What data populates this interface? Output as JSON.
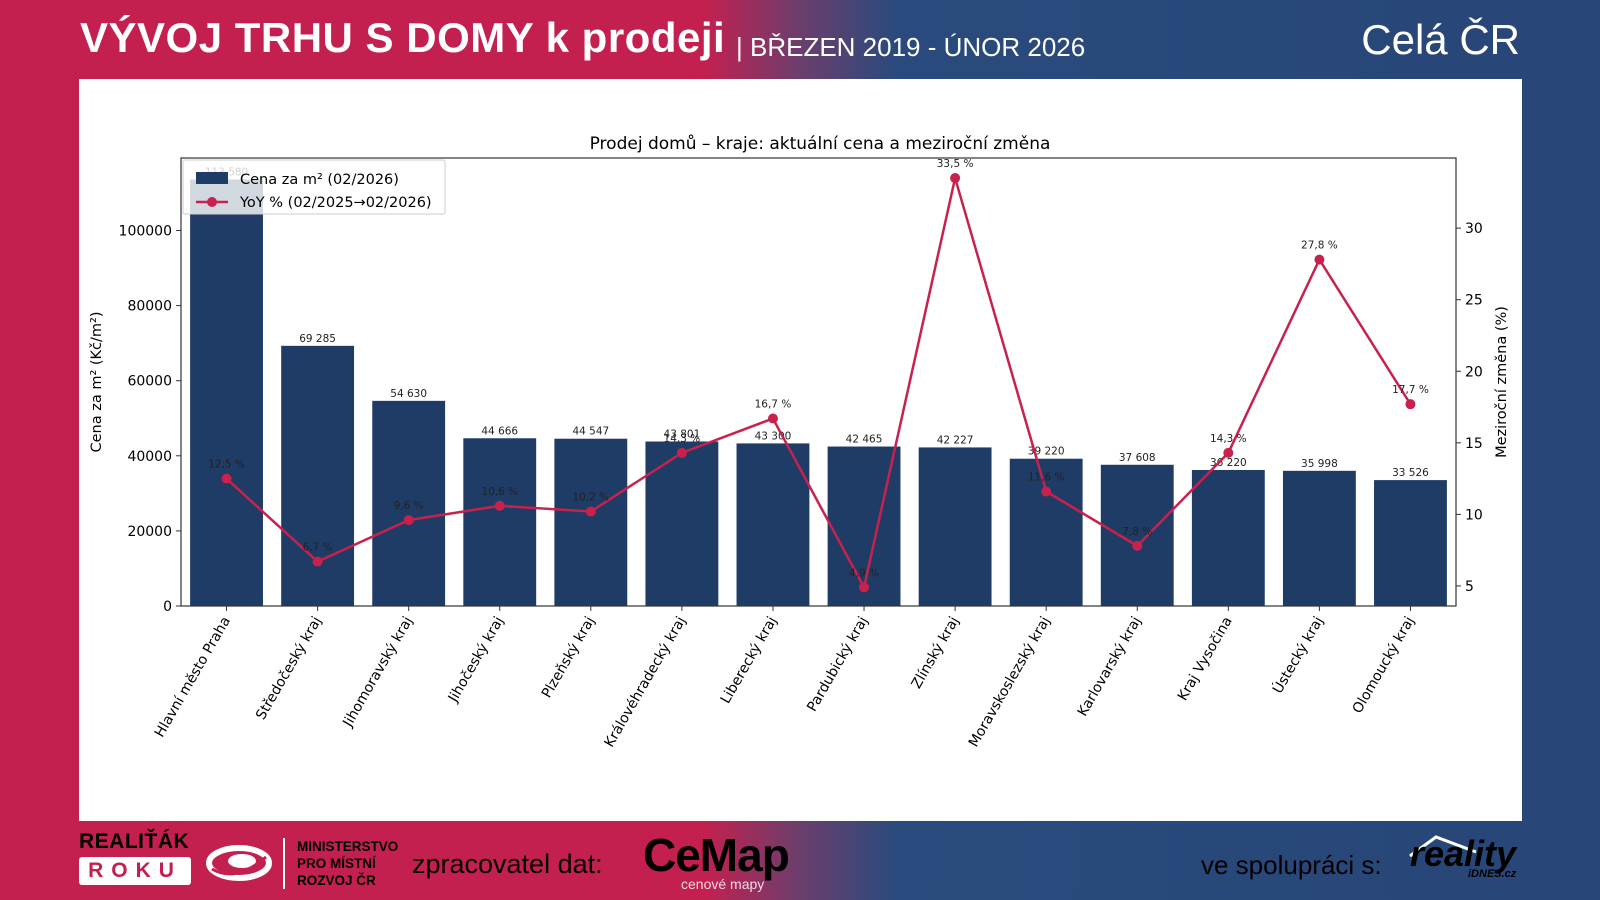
{
  "header": {
    "title": "VÝVOJ TRHU S DOMY k prodeji",
    "period": "| BŘEZEN 2019 - ÚNOR 2026",
    "region": "Celá ČR"
  },
  "footer": {
    "award_line1": "REALIŤÁK",
    "award_line2": "ROKU",
    "ministry_line1": "MINISTERSTVO",
    "ministry_line2": "PRO MÍSTNÍ",
    "ministry_line3": "ROZVOJ ČR",
    "processor_label": "zpracovatel dat:",
    "processor_name": "CeMap",
    "processor_sub": "cenové mapy",
    "partner_label": "ve spolupráci s:",
    "partner_name": "reality",
    "partner_sub": "iDNES.cz"
  },
  "colors": {
    "bar": "#1f3c66",
    "line": "#c8214d",
    "brand_red": "#c4204f",
    "brand_blue": "#284677"
  },
  "chart_data": {
    "type": "bar",
    "title": "Prodej domů – kraje: aktuální cena a meziroční změna",
    "xlabel": "",
    "ylabel": "Cena za m² (Kč/m²)",
    "y2label": "Meziroční změna (%)",
    "ylim": [
      0,
      119300
    ],
    "y2lim": [
      3.6,
      34.9
    ],
    "yticks": [
      0,
      20000,
      40000,
      60000,
      80000,
      100000
    ],
    "y2ticks": [
      5,
      10,
      15,
      20,
      25,
      30
    ],
    "grid": false,
    "legend_position": "top-left",
    "categories": [
      "Hlavní město Praha",
      "Středočeský kraj",
      "Jihomoravský kraj",
      "Jihočeský kraj",
      "Plzeňský kraj",
      "Královéhradecký kraj",
      "Liberecký kraj",
      "Pardubický kraj",
      "Zlínský kraj",
      "Moravskoslezský kraj",
      "Karlovarský kraj",
      "Kraj Vysočina",
      "Ústecký kraj",
      "Olomoucký kraj"
    ],
    "series": [
      {
        "name": "Cena za m² (02/2026)",
        "type": "bar",
        "axis": "left",
        "values": [
          113580,
          69285,
          54630,
          44666,
          44547,
          43801,
          43300,
          42465,
          42227,
          39220,
          37608,
          36220,
          35998,
          33526
        ],
        "labels": [
          "113 580",
          "69 285",
          "54 630",
          "44 666",
          "44 547",
          "43 801",
          "43 300",
          "42 465",
          "42 227",
          "39 220",
          "37 608",
          "36 220",
          "35 998",
          "33 526"
        ]
      },
      {
        "name": "YoY % (02/2025→02/2026)",
        "type": "line",
        "axis": "right",
        "values": [
          12.5,
          6.7,
          9.6,
          10.6,
          10.2,
          14.3,
          16.7,
          4.9,
          33.5,
          11.6,
          7.8,
          14.3,
          27.8,
          17.7
        ],
        "labels": [
          "12,5 %",
          "6,7 %",
          "9,6 %",
          "10,6 %",
          "10,2 %",
          "14,3 %",
          "16,7 %",
          "4,9 %",
          "33,5 %",
          "11,6 %",
          "7,8 %",
          "14,3 %",
          "27,8 %",
          "17,7 %"
        ]
      }
    ]
  }
}
